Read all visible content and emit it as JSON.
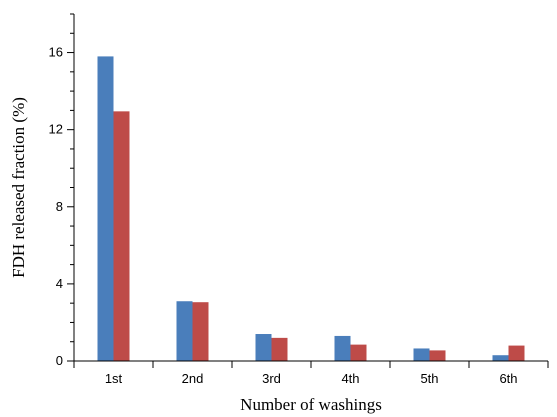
{
  "chart_data": {
    "type": "bar",
    "categories": [
      "1st",
      "2nd",
      "3rd",
      "4th",
      "5th",
      "6th"
    ],
    "series": [
      {
        "color": "#4a7ebb",
        "values": [
          15.8,
          3.1,
          1.4,
          1.3,
          0.65,
          0.3
        ]
      },
      {
        "color": "#be4b48",
        "values": [
          12.95,
          3.05,
          1.2,
          0.85,
          0.55,
          0.8
        ]
      }
    ],
    "xlabel": "Number of washings",
    "ylabel": "FDH released fraction (%)",
    "ylim": [
      0,
      18
    ],
    "yticks": [
      0,
      4,
      8,
      12,
      16
    ],
    "ytick_labels": [
      "0",
      "4",
      "8",
      "12",
      "16"
    ],
    "grid": false,
    "legend": "none"
  }
}
